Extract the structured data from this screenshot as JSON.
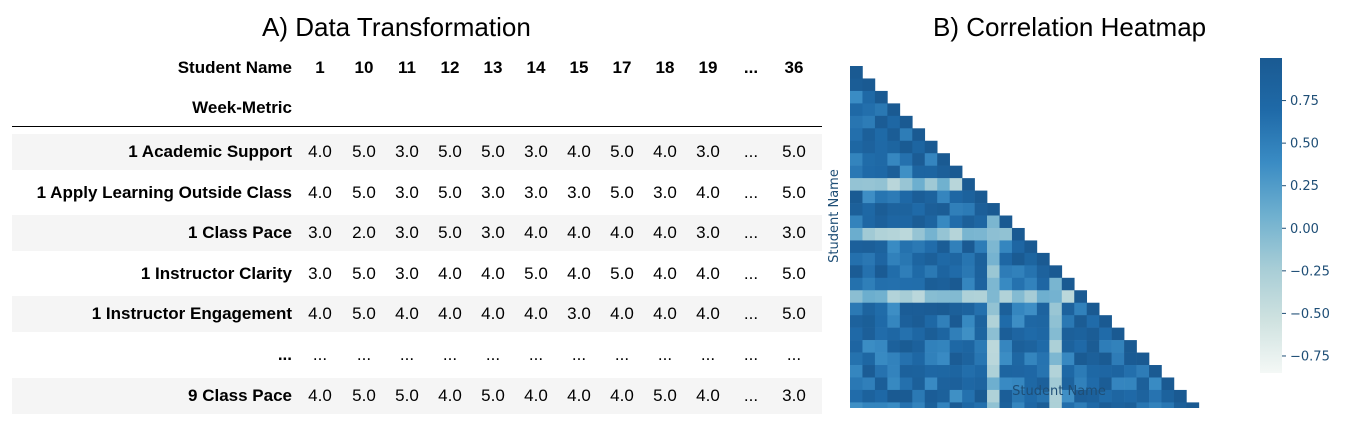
{
  "panel_a": {
    "title": "A) Data Transformation",
    "columns_label": "Student Name",
    "index_label": "Week-Metric",
    "columns": [
      "1",
      "10",
      "11",
      "12",
      "13",
      "14",
      "15",
      "17",
      "18",
      "19",
      "...",
      "36"
    ],
    "rows": [
      {
        "label": "1 Academic Support",
        "values": [
          "4.0",
          "5.0",
          "3.0",
          "5.0",
          "5.0",
          "3.0",
          "4.0",
          "5.0",
          "4.0",
          "3.0",
          "...",
          "5.0"
        ]
      },
      {
        "label": "1 Apply Learning Outside Class",
        "values": [
          "4.0",
          "5.0",
          "3.0",
          "5.0",
          "3.0",
          "3.0",
          "3.0",
          "5.0",
          "3.0",
          "4.0",
          "...",
          "5.0"
        ]
      },
      {
        "label": "1 Class Pace",
        "values": [
          "3.0",
          "2.0",
          "3.0",
          "5.0",
          "3.0",
          "4.0",
          "4.0",
          "4.0",
          "4.0",
          "3.0",
          "...",
          "3.0"
        ]
      },
      {
        "label": "1 Instructor Clarity",
        "values": [
          "3.0",
          "5.0",
          "3.0",
          "4.0",
          "4.0",
          "5.0",
          "4.0",
          "5.0",
          "4.0",
          "4.0",
          "...",
          "5.0"
        ]
      },
      {
        "label": "1 Instructor Engagement",
        "values": [
          "4.0",
          "5.0",
          "4.0",
          "4.0",
          "4.0",
          "4.0",
          "3.0",
          "4.0",
          "4.0",
          "4.0",
          "...",
          "5.0"
        ]
      },
      {
        "label": "...",
        "values": [
          "...",
          "...",
          "...",
          "...",
          "...",
          "...",
          "...",
          "...",
          "...",
          "...",
          "...",
          "..."
        ]
      },
      {
        "label": "9 Class Pace",
        "values": [
          "4.0",
          "5.0",
          "5.0",
          "4.0",
          "5.0",
          "4.0",
          "4.0",
          "4.0",
          "5.0",
          "4.0",
          "...",
          "3.0"
        ]
      }
    ]
  },
  "chart_data": {
    "type": "heatmap",
    "title": "B) Correlation Heatmap",
    "xlabel": "Student Name",
    "ylabel": "Student Name",
    "n": 30,
    "mask": "upper-triangle",
    "colorbar": {
      "ticks": [
        "0.75",
        "0.50",
        "0.25",
        "0.00",
        "−0.25",
        "−0.50",
        "−0.75"
      ],
      "tick_values": [
        0.75,
        0.5,
        0.25,
        0.0,
        -0.25,
        -0.5,
        -0.75
      ],
      "range": [
        -0.85,
        1.0
      ],
      "colors": [
        "#f4f8f6",
        "#cfe2e0",
        "#a7cdd6",
        "#6fb0cf",
        "#3a8cc4",
        "#1f6aa8",
        "#1a5a92"
      ]
    },
    "light_rows": [
      9,
      13,
      18
    ],
    "light_cols": [
      11,
      16
    ]
  }
}
